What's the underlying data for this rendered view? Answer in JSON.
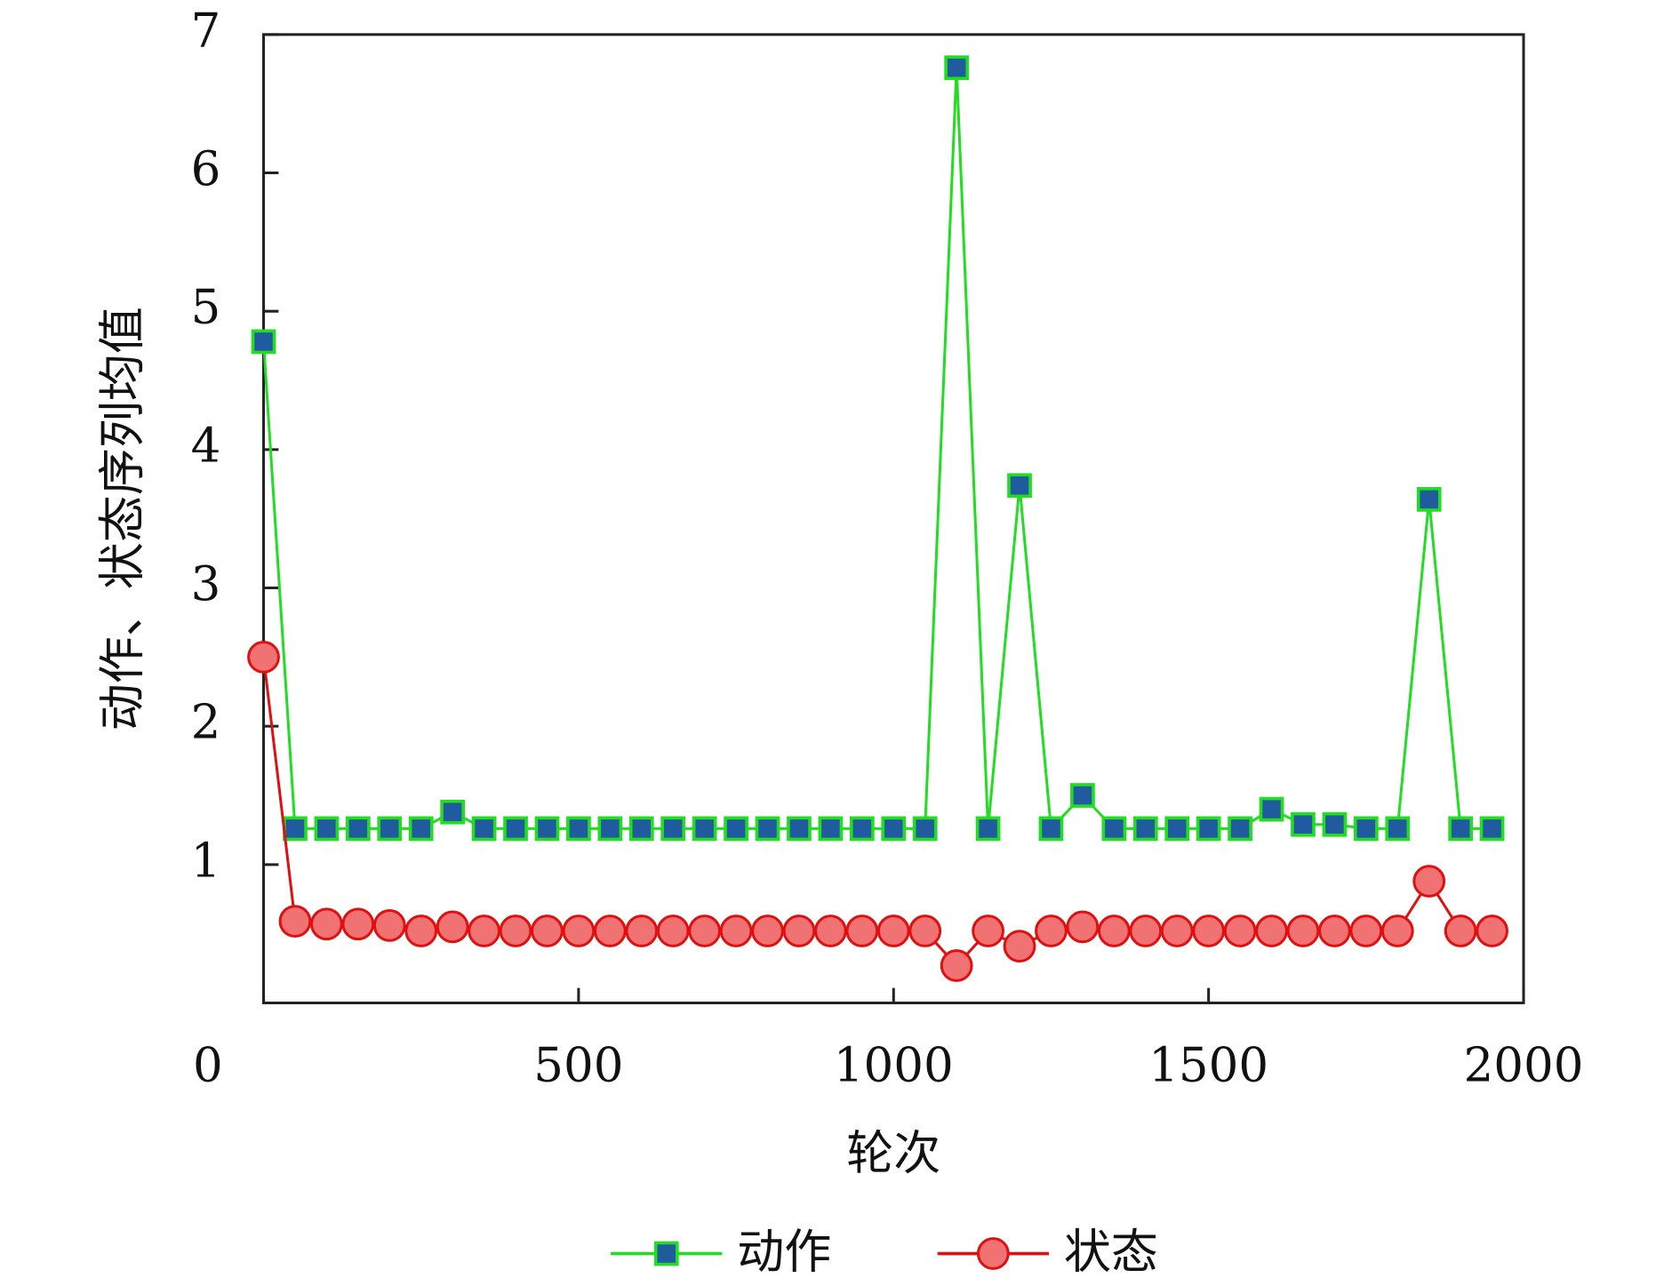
{
  "chart_data": {
    "type": "line",
    "xlabel": "轮次",
    "ylabel": "动作、状态序列均值",
    "x": [
      0,
      50,
      100,
      150,
      200,
      250,
      300,
      350,
      400,
      450,
      500,
      550,
      600,
      650,
      700,
      750,
      800,
      850,
      900,
      950,
      1000,
      1050,
      1100,
      1150,
      1200,
      1250,
      1300,
      1350,
      1400,
      1450,
      1500,
      1550,
      1600,
      1650,
      1700,
      1750,
      1800,
      1850,
      1900,
      1950
    ],
    "series": [
      {
        "name": "动作",
        "color": "#22dd22",
        "marker": "square",
        "marker_fill": "#1f5b9e",
        "values": [
          4.78,
          1.26,
          1.26,
          1.26,
          1.26,
          1.26,
          1.38,
          1.26,
          1.26,
          1.26,
          1.26,
          1.26,
          1.26,
          1.26,
          1.26,
          1.26,
          1.26,
          1.26,
          1.26,
          1.26,
          1.26,
          1.26,
          6.76,
          1.26,
          3.74,
          1.26,
          1.5,
          1.26,
          1.26,
          1.26,
          1.26,
          1.26,
          1.4,
          1.29,
          1.29,
          1.26,
          1.26,
          3.64,
          1.26,
          1.26
        ]
      },
      {
        "name": "状态",
        "color": "#e01010",
        "marker": "circle",
        "marker_fill": "#f07272",
        "values": [
          2.5,
          0.59,
          0.57,
          0.57,
          0.56,
          0.52,
          0.55,
          0.52,
          0.52,
          0.52,
          0.52,
          0.52,
          0.52,
          0.52,
          0.52,
          0.52,
          0.52,
          0.52,
          0.52,
          0.52,
          0.52,
          0.52,
          0.27,
          0.52,
          0.41,
          0.52,
          0.55,
          0.52,
          0.52,
          0.52,
          0.52,
          0.52,
          0.52,
          0.52,
          0.52,
          0.52,
          0.52,
          0.88,
          0.52,
          0.52
        ]
      }
    ],
    "xlim": [
      0,
      2000
    ],
    "xticks": [
      0,
      500,
      1000,
      1500,
      2000
    ],
    "ylim": [
      0,
      7
    ],
    "yticks": [
      1,
      2,
      3,
      4,
      5,
      6,
      7
    ],
    "legend": "bottom",
    "grid": false
  }
}
